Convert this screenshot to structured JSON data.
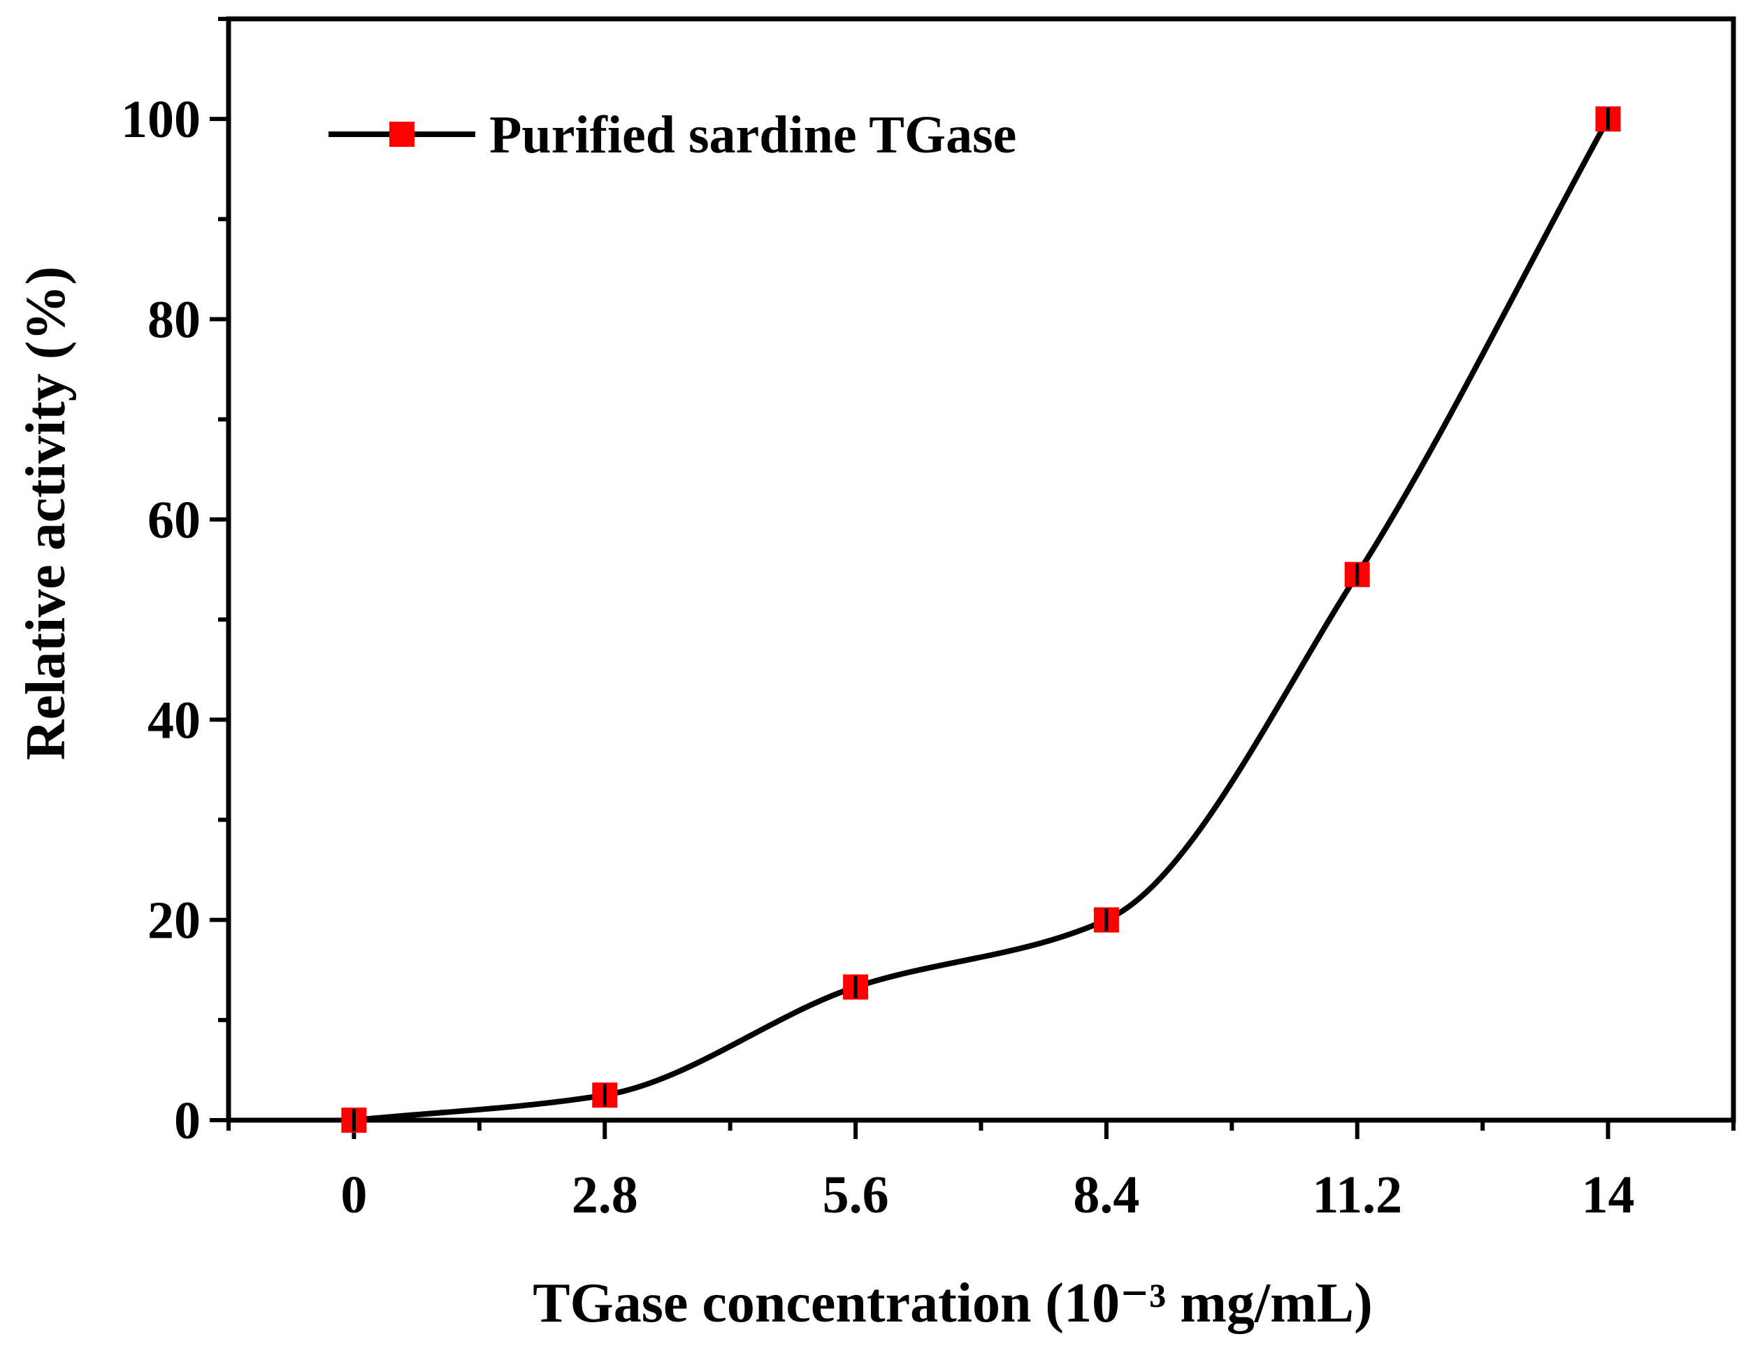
{
  "chart_data": {
    "type": "line",
    "title": "",
    "xlabel": "TGase concentration (10⁻³ mg/mL)",
    "ylabel": "Relative activity (%)",
    "x": [
      0,
      2.8,
      5.6,
      8.4,
      11.2,
      14
    ],
    "x_tick_labels": [
      "0",
      "2.8",
      "5.6",
      "8.4",
      "11.2",
      "14"
    ],
    "y_ticks": [
      0,
      20,
      40,
      60,
      80,
      100
    ],
    "y_tick_labels": [
      "0",
      "20",
      "40",
      "60",
      "80",
      "100"
    ],
    "xlim": [
      -1.4,
      15.4
    ],
    "ylim": [
      0,
      110
    ],
    "series": [
      {
        "name": "Purified sardine TGase",
        "values": [
          0,
          2.5,
          13.3,
          20,
          54.5,
          100
        ],
        "errors": [
          0.3,
          0.6,
          0.8,
          0.7,
          0.9,
          0.6
        ],
        "line_color": "#000000",
        "marker": "square",
        "marker_color": "#ff0000",
        "smooth": true
      }
    ],
    "legend_position": "top-left",
    "grid": false
  }
}
